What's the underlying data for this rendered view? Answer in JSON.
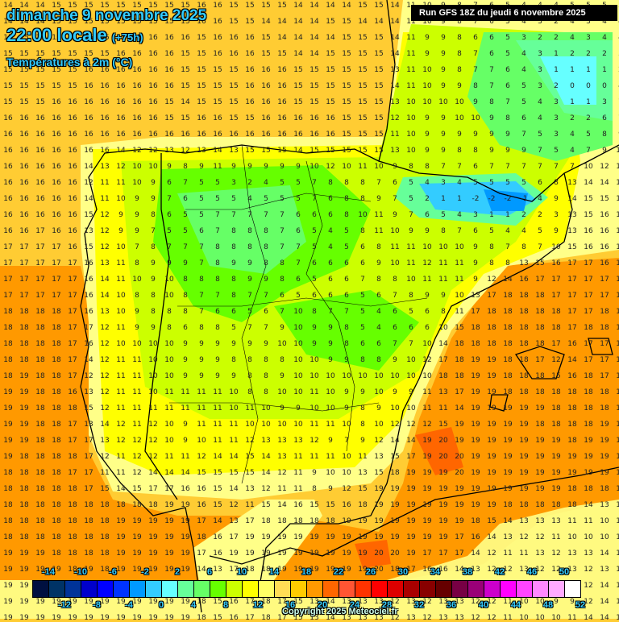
{
  "header": {
    "date": "dimanche 9 novembre 2025",
    "time": "22:00 locale",
    "lead": "(+75h)",
    "variable": "Températures à 2m (°C)",
    "run": "Run GFS 18Z du jeudi 6 novembre 2025"
  },
  "footer": {
    "copyright": "Copyright 2025 Meteociel.fr"
  },
  "legend": {
    "top_labels": [
      "-14",
      "-10",
      "-6",
      "-2",
      "2",
      "6",
      "10",
      "14",
      "18",
      "22",
      "26",
      "30",
      "34",
      "38",
      "42",
      "46",
      "50"
    ],
    "bottom_labels": [
      "-12",
      "-8",
      "-4",
      "0",
      "4",
      "8",
      "12",
      "16",
      "20",
      "24",
      "28",
      "32",
      "36",
      "40",
      "44",
      "48",
      "52"
    ],
    "colors": [
      "#001040",
      "#003366",
      "#003399",
      "#0000cc",
      "#0000ff",
      "#0033ff",
      "#0099ff",
      "#33ccff",
      "#66ffff",
      "#66ff99",
      "#66ff66",
      "#66ff00",
      "#ccff00",
      "#ffff00",
      "#ffff66",
      "#ffdd55",
      "#ffcc00",
      "#ff9900",
      "#ff6600",
      "#ff5533",
      "#ff3300",
      "#ff0000",
      "#dd0000",
      "#aa0000",
      "#880000",
      "#660000",
      "#770044",
      "#990077",
      "#cc00cc",
      "#ff00ff",
      "#ff44ff",
      "#ff88ff",
      "#ffaaff",
      "#ffffff"
    ]
  },
  "map": {
    "region": "Péninsule Ibérique",
    "grid_origin": [
      5,
      2
    ],
    "grid_step": 20,
    "rows": [
      "14 14 14 15 15 15 15 15 15 15 15 15 16 16 15 15 15 15 14 14 14 14 15 15 14 11 10 9 8 7 6 5 4 4 4 5 5 5 5",
      "14 14 14 15 15 15 15 15 15 15 15 15 16 16 15 15 14 14 14 14 15 15 14 14 14 11 10 9 8 7 6 5 4 3 2 4 3 4 4",
      "15 15 15 15 15 16 15 15 15 16 16 16 15 16 16 16 15 14 14 14 14 15 15 15 14 11 9 9 8 6 6 5 3 2 2 4 3 4 4",
      "15 15 15 15 15 15 15 16 16 16 16 15 15 16 16 16 15 15 14 14 15 15 15 15 14 11 9 9 8 7 6 5 4 3 1 2 2 2 3",
      "15 15 15 15 15 16 16 16 16 16 16 15 15 15 15 16 16 16 15 15 15 15 15 15 13 11 10 9 8 7 7 6 4 3 1 1 1 1 2",
      "15 15 15 15 15 16 16 16 16 16 16 15 15 15 15 16 16 16 15 15 15 15 15 15 14 11 10 9 9 8 7 6 5 3 2 0 0 0 4",
      "15 15 15 16 16 16 16 16 16 16 15 14 15 15 15 16 16 16 15 15 15 15 15 15 13 10 10 10 10 9 8 7 5 4 3 1 1 3 7",
      "16 16 16 16 16 16 16 16 16 16 15 15 16 16 15 15 16 16 16 16 16 15 15 15 12 10 9 9 10 10 9 8 6 4 3 2 2 6 7",
      "16 16 16 16 16 16 16 16 16 16 16 16 16 16 16 16 16 16 16 16 16 15 15 15 11 10 9 9 9 9 9 9 7 5 3 4 5 8 9",
      "16 16 16 16 16 16 16 14 12 12 13 12 13 14 13 15 15 15 14 15 15 15 15 15 13 10 9 9 8 8 9 9 9 7 5 4 7 9 12",
      "16 16 16 16 16 14 13 12 10 10 9 8 9 11 9 9 9 9 9 10 12 10 11 10 9 8 8 7 7 6 7 7 7 7 7 7 10 12 14",
      "16 16 16 16 16 12 11 11 10 9 6 7 5 5 3 2 4 5 5 7 8 8 8 7 6 5 4 3 4 5 5 5 5 6 8 13 14 14 15",
      "16 16 16 16 16 14 11 10 9 9 7 6 5 5 5 4 5 5 5 7 6 8 8 9 7 5 2 1 1 -2 -2 -2 -1 4 9 14 15 15 15",
      "16 16 16 16 16 15 12 9 9 8 6 5 5 7 7 7 7 7 6 6 6 8 10 11 9 7 6 5 4 3 1 1 2 2 3 13 15 16 16",
      "16 16 17 16 16 13 12 9 9 7 5 5 6 7 8 8 8 7 6 5 4 5 8 11 10 9 9 8 7 6 5 4 4 5 9 13 16 16 16",
      "17 17 17 17 16 15 12 10 7 8 7 7 7 8 8 8 8 7 7 5 4 5 6 8 11 11 10 10 10 9 8 7 8 7 10 15 16 16 16",
      "17 17 17 17 17 16 13 11 8 9 9 9 7 8 9 9 8 8 7 6 6 6 6 9 10 11 12 11 11 9 8 8 13 15 16 17 17 16 18",
      "17 17 17 17 17 16 14 11 10 9 10 8 8 8 8 9 9 8 6 5 6 6 7 8 8 10 11 11 11 9 12 14 16 17 17 17 17 17 17",
      "17 17 17 17 17 16 14 10 8 8 10 8 7 7 8 7 7 6 5 6 6 6 5 6 7 8 9 9 10 13 17 18 18 18 17 17 17 17 17",
      "18 18 18 18 17 16 13 10 9 8 8 8 7 6 6 5 6 7 10 8 7 7 5 4 6 5 6 8 11 17 18 18 18 18 18 17 17 18 17",
      "18 18 18 18 17 17 12 11 9 9 8 6 8 8 5 7 7 9 10 9 9 8 5 4 6 6 6 10 15 18 18 18 18 18 18 17 18 18 18",
      "18 18 18 18 17 16 12 10 10 10 10 9 9 9 9 9 9 10 10 9 9 8 6 6 7 7 10 14 18 18 18 18 18 18 17 16 17 17 15",
      "18 18 18 18 17 14 12 11 11 10 10 9 9 9 8 8 8 8 10 10 9 9 8 8 9 10 12 17 18 19 19 18 18 17 12 14 17 17 17",
      "18 19 18 18 17 12 12 11 11 10 10 9 9 9 9 8 8 9 10 10 10 10 10 10 10 10 10 18 18 19 19 18 18 18 15 16 18 17 17",
      "19 19 18 18 16 13 12 11 11 10 11 11 11 11 10 8 8 10 10 11 10 9 9 10 9 9 11 13 17 19 19 18 18 18 18 18 18 18 18",
      "19 19 18 18 18 15 12 11 11 11 11 11 11 11 10 11 10 9 9 10 10 9 8 9 10 10 11 11 14 19 19 19 19 19 18 18 18 18 19",
      "19 19 18 18 17 13 14 12 11 12 10 9 11 11 11 10 10 10 10 11 11 10 8 10 12 12 12 15 19 19 19 19 19 18 18 18 18 19 19",
      "19 19 18 18 17 17 13 12 12 12 10 9 10 11 11 12 13 13 13 12 9 7 9 12 14 14 19 20 19 19 19 19 19 19 19 18 19 19 19",
      "19 18 18 18 18 17 12 11 12 12 11 11 12 14 14 15 14 13 11 11 11 10 11 13 15 17 19 20 20 19 19 19 19 19 19 19 19 19 19",
      "18 18 18 18 17 17 11 11 12 14 14 14 15 15 15 15 14 12 11 9 10 10 13 15 18 19 19 19 20 19 19 19 19 19 19 19 19 19 19",
      "18 18 18 18 18 17 15 14 15 17 17 16 16 15 14 13 12 11 11 8 9 12 15 19 19 19 19 19 19 19 19 19 19 19 19 18 18 18 19",
      "18 18 18 18 18 18 18 18 18 18 19 19 16 15 12 11 15 14 16 15 15 16 18 19 19 19 19 19 19 19 19 18 18 18 18 18 14 13 10",
      "18 18 18 18 18 18 18 19 19 19 19 19 17 14 13 17 18 18 18 18 18 19 19 19 19 19 19 19 19 18 15 14 13 13 13 11 11 10 10",
      "18 18 18 18 18 18 18 19 19 19 19 19 18 16 17 19 19 19 19 19 19 19 19 19 19 19 19 19 17 16 14 13 12 12 11 10 10 10 10",
      "19 19 19 18 18 18 18 19 19 19 19 19 17 16 19 19 19 19 19 19 19 19 19 20 20 19 17 17 17 14 12 11 11 13 12 13 13 14 14",
      "19 19 19 19 18 19 18 19 19 19 19 19 14 13 17 18 18 19 19 19 19 19 19 20 18 17 16 16 14 13 12 12 13 12 12 13 12 13 15",
      "19 19 19 19 19 19 19 19 19 19 19 19 18 15 16 17 18 17 15 13 14 13 13 13 12 13 12 13 13 12 12 11 10 10 9 9 12 14 14",
      "19 19 19 19 19 19 19 19 19 19 19 19 18 15 16 17 18 17 15 13 14 13 13 13 12 13 12 13 13 12 12 11 10 10 9 9 12 14 14",
      "19 19 19 19 19 19 19 19 19 19 19 19 18 15 16 17 18 17 15 13 14 13 13 13 12 13 12 13 13 12 12 11 10 10 10 11 14 14 14"
    ]
  }
}
